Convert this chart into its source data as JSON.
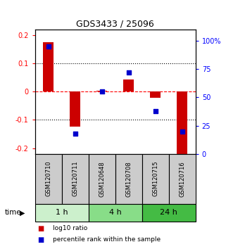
{
  "title": "GDS3433 / 25096",
  "samples": [
    "GSM120710",
    "GSM120711",
    "GSM120648",
    "GSM120708",
    "GSM120715",
    "GSM120716"
  ],
  "log10_ratio": [
    0.175,
    -0.123,
    0.003,
    0.042,
    -0.022,
    -0.222
  ],
  "percentile_rank": [
    95,
    18,
    55,
    72,
    38,
    20
  ],
  "time_groups": [
    {
      "label": "1 h",
      "start": 0,
      "end": 2,
      "color": "#ccf0cc"
    },
    {
      "label": "4 h",
      "start": 2,
      "end": 4,
      "color": "#88dd88"
    },
    {
      "label": "24 h",
      "start": 4,
      "end": 6,
      "color": "#44bb44"
    }
  ],
  "bar_color": "#cc0000",
  "dot_color": "#0000cc",
  "ylim_left": [
    -0.22,
    0.22
  ],
  "ylim_right": [
    0,
    110
  ],
  "yticks_left": [
    -0.2,
    -0.1,
    0.0,
    0.1,
    0.2
  ],
  "ytick_labels_left": [
    "-0.2",
    "-0.1",
    "0",
    "0.1",
    "0.2"
  ],
  "yticks_right": [
    0,
    25,
    50,
    75,
    100
  ],
  "ytick_labels_right": [
    "0",
    "25",
    "50",
    "75",
    "100%"
  ],
  "sample_box_color": "#cccccc",
  "legend_items": [
    {
      "label": "log10 ratio",
      "color": "#cc0000"
    },
    {
      "label": "percentile rank within the sample",
      "color": "#0000cc"
    }
  ]
}
